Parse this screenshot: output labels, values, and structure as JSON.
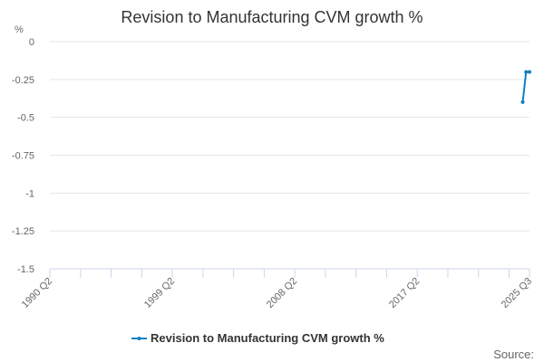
{
  "chart_data": {
    "type": "line",
    "title": "Revision to Manufacturing CVM growth %",
    "ylabel": "%",
    "xlabel": "",
    "x_range": [
      "1990 Q2",
      "2025 Q3"
    ],
    "ylim": [
      -1.5,
      0
    ],
    "yticks": [
      "0",
      "-0.25",
      "-0.5",
      "-0.75",
      "-1",
      "-1.25",
      "-1.5"
    ],
    "xtick_labels": [
      "1990 Q2",
      "1999 Q2",
      "2008 Q2",
      "2017 Q2",
      "2025 Q3"
    ],
    "grid": true,
    "legend_position": "bottom",
    "series": [
      {
        "name": "Revision to Manufacturing CVM growth %",
        "color": "#0f7fc2",
        "x": [
          "2025 Q1",
          "2025 Q2",
          "2025 Q3"
        ],
        "values": [
          -0.4,
          -0.2,
          -0.2
        ]
      }
    ],
    "source_label": "Source:"
  }
}
